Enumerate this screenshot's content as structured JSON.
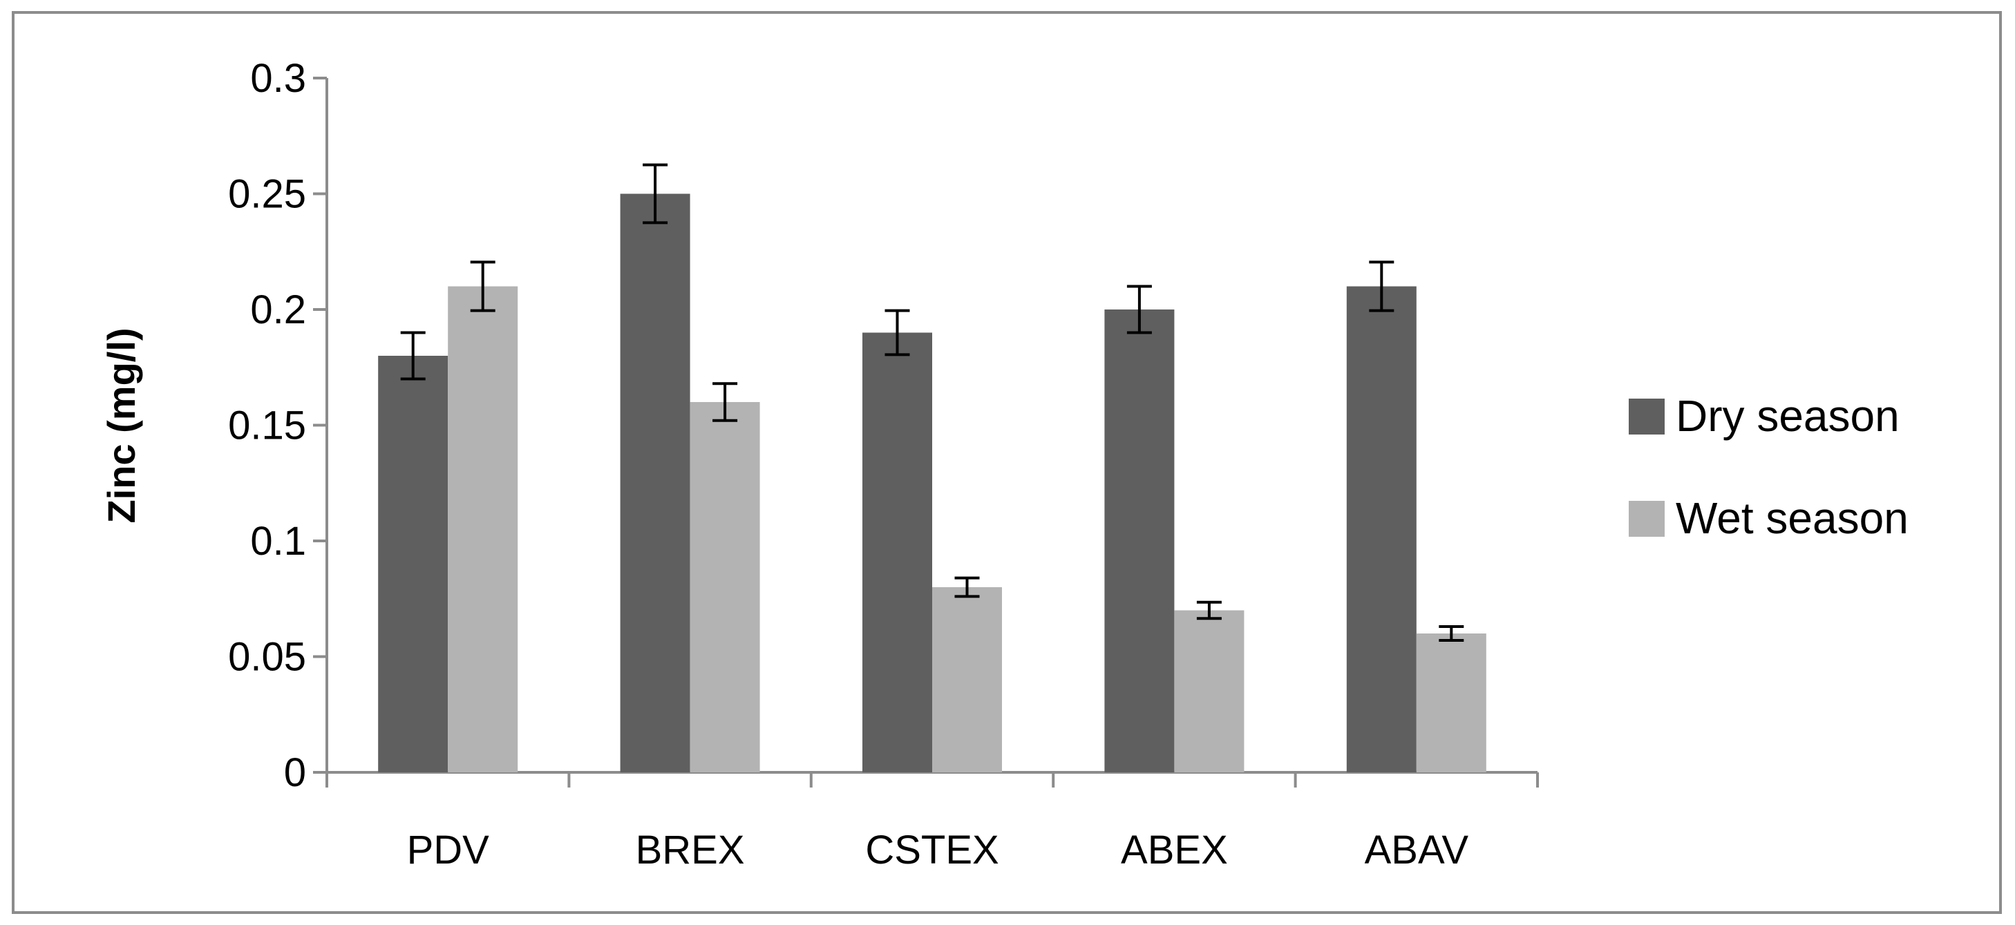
{
  "chart_data": {
    "type": "bar",
    "title": "",
    "xlabel": "",
    "ylabel": "Zinc (mg/l)",
    "ylim": [
      0,
      0.3
    ],
    "yticks": [
      "0",
      "0.05",
      "0.1",
      "0.15",
      "0.2",
      "0.25",
      "0.3"
    ],
    "grid": false,
    "legend_position": "right",
    "categories": [
      "PDV",
      "BREX",
      "CSTEX",
      "ABEX",
      "ABAV"
    ],
    "series": [
      {
        "name": "Dry season",
        "color": "#5f5f5f",
        "values": [
          0.18,
          0.25,
          0.19,
          0.2,
          0.21
        ],
        "errors": [
          0.01,
          0.0125,
          0.0095,
          0.01,
          0.0105
        ]
      },
      {
        "name": "Wet season",
        "color": "#b3b3b3",
        "values": [
          0.21,
          0.16,
          0.08,
          0.07,
          0.06
        ],
        "errors": [
          0.0105,
          0.008,
          0.004,
          0.0035,
          0.003
        ]
      }
    ]
  }
}
